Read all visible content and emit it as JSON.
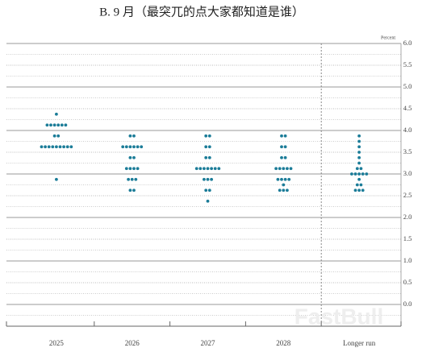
{
  "chart_data": {
    "type": "dot",
    "title": "B. 9 月（最突兀的点大家都知道是谁）",
    "y_axis_label": "Percent",
    "watermark": "FastBull",
    "categories": [
      "2025",
      "2026",
      "2027",
      "2028",
      "Longer run"
    ],
    "values": [
      [
        4.375,
        4.125,
        4.125,
        4.125,
        4.125,
        4.125,
        4.125,
        3.875,
        3.875,
        3.625,
        3.625,
        3.625,
        3.625,
        3.625,
        3.625,
        3.625,
        3.625,
        3.625,
        2.875
      ],
      [
        3.875,
        3.875,
        3.625,
        3.625,
        3.625,
        3.625,
        3.625,
        3.625,
        3.375,
        3.375,
        3.125,
        3.125,
        3.125,
        3.125,
        2.875,
        2.875,
        2.875,
        2.625,
        2.625
      ],
      [
        3.875,
        3.875,
        3.625,
        3.625,
        3.375,
        3.375,
        3.125,
        3.125,
        3.125,
        3.125,
        3.125,
        3.125,
        3.125,
        2.875,
        2.875,
        2.875,
        2.625,
        2.625,
        2.375
      ],
      [
        3.875,
        3.875,
        3.625,
        3.625,
        3.375,
        3.375,
        3.125,
        3.125,
        3.125,
        3.125,
        3.125,
        2.875,
        2.875,
        2.875,
        2.875,
        2.75,
        2.625,
        2.625,
        2.625
      ],
      [
        3.875,
        3.75,
        3.625,
        3.5,
        3.375,
        3.25,
        3.125,
        3.125,
        3.0,
        3.0,
        3.0,
        3.0,
        3.0,
        2.875,
        2.75,
        2.75,
        2.625,
        2.625,
        2.625
      ]
    ],
    "color": "#1b7c98",
    "ylim": [
      -0.5,
      6
    ],
    "yticks": [
      {
        "value": 0,
        "label": "0.0"
      },
      0.5,
      {
        "value": 1,
        "label": "1.0"
      },
      1.5,
      {
        "value": 2,
        "label": "2.0"
      },
      2.5,
      {
        "value": 3,
        "label": "3.0"
      },
      3.5,
      {
        "value": 4,
        "label": "4.0"
      },
      4.5,
      {
        "value": 5,
        "label": "5.0"
      },
      5.5,
      {
        "value": 6,
        "label": "6.0"
      }
    ],
    "grid": true
  }
}
